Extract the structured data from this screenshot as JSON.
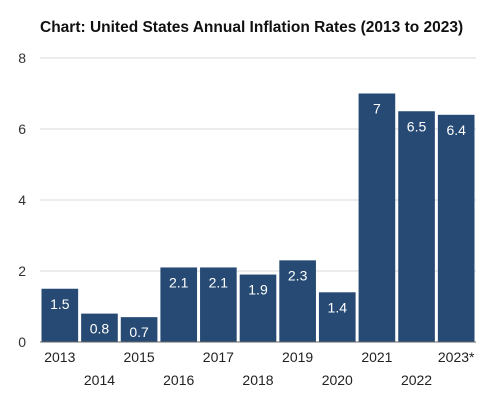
{
  "chart_data": {
    "type": "bar",
    "title": "Chart: United States Annual Inflation Rates (2013 to 2023)",
    "xlabel": "",
    "ylabel": "",
    "categories": [
      "2013",
      "2014",
      "2015",
      "2016",
      "2017",
      "2018",
      "2019",
      "2020",
      "2021",
      "2022",
      "2023*"
    ],
    "values": [
      1.5,
      0.8,
      0.7,
      2.1,
      2.1,
      1.9,
      2.3,
      1.4,
      7,
      6.5,
      6.4
    ],
    "ylim": [
      0,
      8
    ],
    "yticks": [
      "0",
      "2",
      "4",
      "6",
      "8"
    ],
    "grid": true,
    "legend": "none",
    "bar_color": "#264a73",
    "data_label_color": "#ffffff"
  }
}
